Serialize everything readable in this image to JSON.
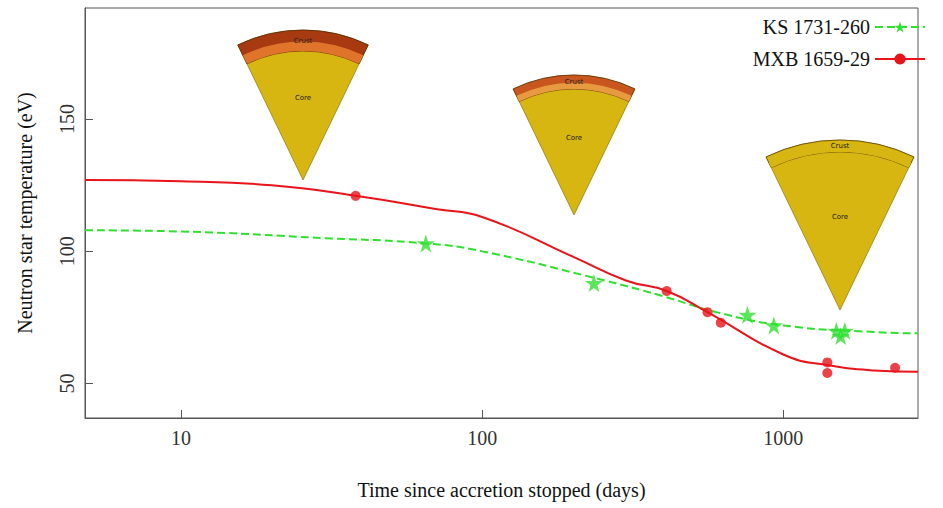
{
  "chart_data": {
    "type": "scatter",
    "x_label": "Time since accretion stopped (days)",
    "y_label": "Neutron star temperature (eV)",
    "log": "x",
    "xlim": [
      4.8,
      2800
    ],
    "xticks": [
      10,
      100,
      1000
    ],
    "ylim": [
      37,
      192
    ],
    "yticks": [
      50,
      100,
      150
    ],
    "grid": false,
    "legend": "upper right",
    "annotations": [
      "Crust",
      "Core"
    ],
    "series": [
      {
        "name": "KS 1731-260",
        "color": "#2fe02f",
        "marker": "star",
        "line_style": "dashed",
        "x": [
          65,
          235,
          760,
          930,
          1500,
          1550,
          1600
        ],
        "values": [
          103,
          88,
          76,
          72,
          70,
          68,
          70
        ],
        "curve_x": [
          4.8,
          10,
          30,
          65,
          100,
          235,
          400,
          600,
          1000,
          2000,
          2800
        ],
        "curve_values": [
          108,
          107.5,
          105,
          103,
          100,
          90,
          83,
          77,
          72,
          69.5,
          69
        ]
      },
      {
        "name": "MXB 1659-29",
        "color": "#e8141a",
        "marker": "circle",
        "line_style": "solid",
        "x": [
          38,
          410,
          560,
          620,
          1400,
          1400,
          2350
        ],
        "values": [
          121,
          85,
          77,
          73,
          58,
          54,
          56
        ],
        "curve_x": [
          4.8,
          10,
          20,
          38,
          70,
          100,
          200,
          300,
          410,
          560,
          1000,
          1400,
          2000,
          2800
        ],
        "curve_values": [
          127,
          126.5,
          125,
          121,
          116,
          113,
          98,
          89,
          85,
          77,
          61,
          57,
          55,
          54.5
        ]
      }
    ]
  }
}
